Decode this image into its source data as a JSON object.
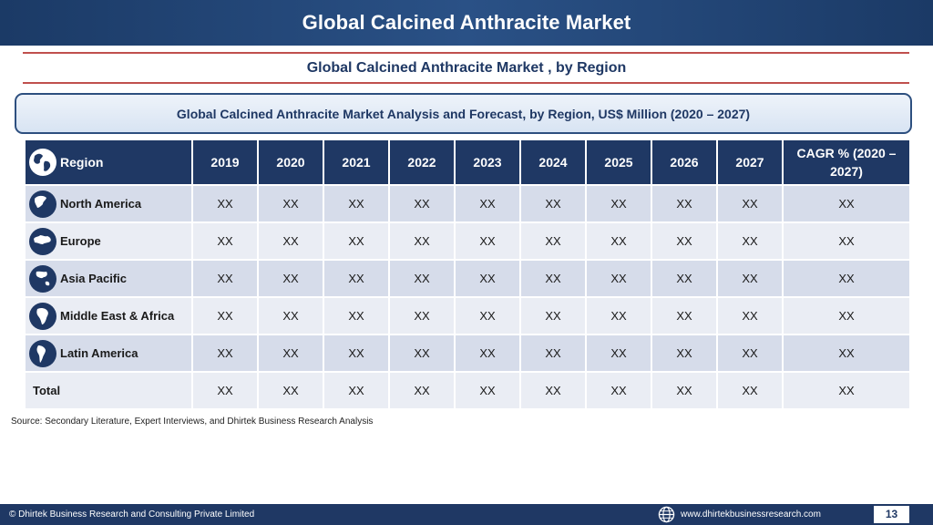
{
  "header": {
    "title": "Global Calcined Anthracite Market"
  },
  "subtitle": "Global Calcined Anthracite Market , by Region",
  "analysis_title": "Global Calcined Anthracite Market  Analysis and Forecast, by Region, US$ Million (2020 – 2027)",
  "table": {
    "columns": [
      "Region",
      "2019",
      "2020",
      "2021",
      "2022",
      "2023",
      "2024",
      "2025",
      "2026",
      "2027",
      "CAGR % (2020 – 2027)"
    ],
    "rows": [
      {
        "region": "North America",
        "icon": "north-america-globe-icon",
        "values": [
          "XX",
          "XX",
          "XX",
          "XX",
          "XX",
          "XX",
          "XX",
          "XX",
          "XX",
          "XX"
        ]
      },
      {
        "region": "Europe",
        "icon": "europe-globe-icon",
        "values": [
          "XX",
          "XX",
          "XX",
          "XX",
          "XX",
          "XX",
          "XX",
          "XX",
          "XX",
          "XX"
        ]
      },
      {
        "region": "Asia Pacific",
        "icon": "asia-pacific-globe-icon",
        "values": [
          "XX",
          "XX",
          "XX",
          "XX",
          "XX",
          "XX",
          "XX",
          "XX",
          "XX",
          "XX"
        ]
      },
      {
        "region": "Middle East & Africa",
        "icon": "africa-globe-icon",
        "values": [
          "XX",
          "XX",
          "XX",
          "XX",
          "XX",
          "XX",
          "XX",
          "XX",
          "XX",
          "XX"
        ]
      },
      {
        "region": "Latin America",
        "icon": "latin-america-globe-icon",
        "values": [
          "XX",
          "XX",
          "XX",
          "XX",
          "XX",
          "XX",
          "XX",
          "XX",
          "XX",
          "XX"
        ]
      },
      {
        "region": "Total",
        "icon": null,
        "values": [
          "XX",
          "XX",
          "XX",
          "XX",
          "XX",
          "XX",
          "XX",
          "XX",
          "XX",
          "XX"
        ]
      }
    ]
  },
  "source": "Source: Secondary Literature, Expert Interviews, and Dhirtek Business Research Analysis",
  "footer": {
    "copyright": "© Dhirtek Business Research and Consulting Private Limited",
    "website": "www.dhirtekbusinessresearch.com",
    "website_icon": "globe-icon",
    "page_number": "13"
  },
  "colors": {
    "header_bg": "#1f3864",
    "accent_rule": "#c0504d",
    "row_odd": "#d6dcea",
    "row_even": "#eaedf4",
    "title_text": "#1f3864"
  }
}
